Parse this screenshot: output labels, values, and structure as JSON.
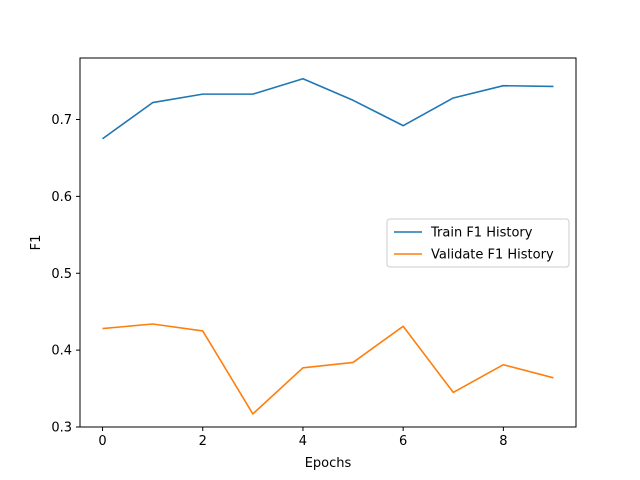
{
  "chart_data": {
    "type": "line",
    "title": "",
    "xlabel": "Epochs",
    "ylabel": "F1",
    "xlim": [
      -0.45,
      9.45
    ],
    "ylim": [
      0.3,
      0.78
    ],
    "x_ticks": [
      0,
      2,
      4,
      6,
      8
    ],
    "y_ticks": [
      0.3,
      0.4,
      0.5,
      0.6,
      0.7
    ],
    "x_tick_labels": [
      "0",
      "2",
      "4",
      "6",
      "8"
    ],
    "y_tick_labels": [
      "0.3",
      "0.4",
      "0.5",
      "0.6",
      "0.7"
    ],
    "grid": false,
    "legend_position": "center-right",
    "x": [
      0,
      1,
      2,
      3,
      4,
      5,
      6,
      7,
      8,
      9
    ],
    "series": [
      {
        "name": "Train F1 History",
        "color": "#1f77b4",
        "values": [
          0.675,
          0.722,
          0.733,
          0.733,
          0.753,
          0.725,
          0.692,
          0.728,
          0.744,
          0.743
        ]
      },
      {
        "name": "Validate F1 History",
        "color": "#ff7f0e",
        "values": [
          0.428,
          0.434,
          0.425,
          0.317,
          0.377,
          0.384,
          0.431,
          0.345,
          0.381,
          0.364
        ]
      }
    ]
  }
}
